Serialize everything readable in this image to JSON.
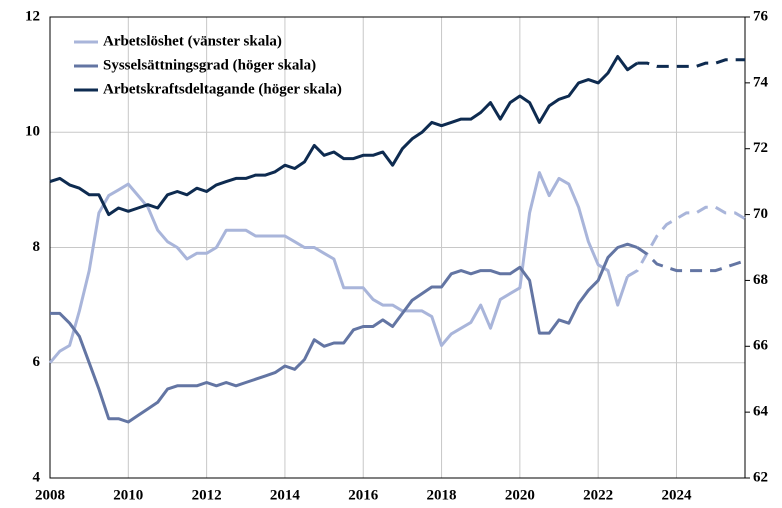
{
  "chart_data": {
    "type": "line",
    "x": [
      2008,
      2008.25,
      2008.5,
      2008.75,
      2009,
      2009.25,
      2009.5,
      2009.75,
      2010,
      2010.25,
      2010.5,
      2010.75,
      2011,
      2011.25,
      2011.5,
      2011.75,
      2012,
      2012.25,
      2012.5,
      2012.75,
      2013,
      2013.25,
      2013.5,
      2013.75,
      2014,
      2014.25,
      2014.5,
      2014.75,
      2015,
      2015.25,
      2015.5,
      2015.75,
      2016,
      2016.25,
      2016.5,
      2016.75,
      2017,
      2017.25,
      2017.5,
      2017.75,
      2018,
      2018.25,
      2018.5,
      2018.75,
      2019,
      2019.25,
      2019.5,
      2019.75,
      2020,
      2020.25,
      2020.5,
      2020.75,
      2021,
      2021.25,
      2021.5,
      2021.75,
      2022,
      2022.25,
      2022.5,
      2022.75,
      2023,
      2023.25,
      2023.5,
      2023.75,
      2024,
      2024.25,
      2024.5,
      2024.75,
      2025,
      2025.25,
      2025.5,
      2025.75
    ],
    "xlim": [
      2008,
      2025.75
    ],
    "xticks": [
      2008,
      2010,
      2012,
      2014,
      2016,
      2018,
      2020,
      2022,
      2024
    ],
    "ylim": [
      4,
      12
    ],
    "yticks": [
      4,
      6,
      8,
      10,
      12
    ],
    "y2lim": [
      62,
      76
    ],
    "y2ticks": [
      62,
      64,
      66,
      68,
      70,
      72,
      74,
      76
    ],
    "grid": true,
    "legend": "upper left",
    "series": [
      {
        "name": "Arbetslöshet (vänster skala)",
        "color": "#a9b5da",
        "dash_from": 2022.75,
        "values": [
          6.0,
          6.2,
          6.3,
          6.9,
          7.6,
          8.6,
          8.9,
          9.0,
          9.1,
          8.9,
          8.7,
          8.3,
          8.1,
          8.0,
          7.8,
          7.9,
          7.9,
          8.0,
          8.3,
          8.3,
          8.3,
          8.2,
          8.2,
          8.2,
          8.2,
          8.1,
          8.0,
          8.0,
          7.9,
          7.8,
          7.3,
          7.3,
          7.3,
          7.1,
          7.0,
          7.0,
          6.9,
          6.9,
          6.9,
          6.8,
          6.3,
          6.5,
          6.6,
          6.7,
          7.0,
          6.6,
          7.1,
          7.2,
          7.3,
          8.6,
          9.3,
          8.9,
          9.2,
          9.1,
          8.7,
          8.1,
          7.7,
          7.6,
          7.0,
          7.5,
          7.6,
          7.9,
          8.2,
          8.4,
          8.5,
          8.6,
          8.6,
          8.7,
          8.7,
          8.6,
          8.6,
          8.5
        ]
      },
      {
        "name": "Sysselsättningsgrad (höger skala)",
        "color": "#6375a3",
        "axis": "y2",
        "dash_from": 2023,
        "values": [
          67.0,
          67.0,
          66.7,
          66.3,
          65.5,
          64.7,
          63.8,
          63.8,
          63.7,
          63.9,
          64.1,
          64.3,
          64.7,
          64.8,
          64.8,
          64.8,
          64.9,
          64.8,
          64.9,
          64.8,
          64.9,
          65.0,
          65.1,
          65.2,
          65.4,
          65.3,
          65.6,
          66.2,
          66.0,
          66.1,
          66.1,
          66.5,
          66.6,
          66.6,
          66.8,
          66.6,
          67.0,
          67.4,
          67.6,
          67.8,
          67.8,
          68.2,
          68.3,
          68.2,
          68.3,
          68.3,
          68.2,
          68.2,
          68.4,
          68.0,
          66.4,
          66.4,
          66.8,
          66.7,
          67.3,
          67.7,
          68.0,
          68.7,
          69.0,
          69.1,
          69.0,
          68.8,
          68.5,
          68.4,
          68.3,
          68.3,
          68.3,
          68.3,
          68.3,
          68.4,
          68.5,
          68.6
        ]
      },
      {
        "name": "Arbetskraftsdeltagande (höger skala)",
        "color": "#0e2b50",
        "axis": "y2",
        "dash_from": 2023,
        "values": [
          71.0,
          71.1,
          70.9,
          70.8,
          70.6,
          70.6,
          70.0,
          70.2,
          70.1,
          70.2,
          70.3,
          70.2,
          70.6,
          70.7,
          70.6,
          70.8,
          70.7,
          70.9,
          71.0,
          71.1,
          71.1,
          71.2,
          71.2,
          71.3,
          71.5,
          71.4,
          71.6,
          72.1,
          71.8,
          71.9,
          71.7,
          71.7,
          71.8,
          71.8,
          71.9,
          71.5,
          72.0,
          72.3,
          72.5,
          72.8,
          72.7,
          72.8,
          72.9,
          72.9,
          73.1,
          73.4,
          72.9,
          73.4,
          73.6,
          73.4,
          72.8,
          73.3,
          73.5,
          73.6,
          74.0,
          74.1,
          74.0,
          74.3,
          74.8,
          74.4,
          74.6,
          74.6,
          74.5,
          74.5,
          74.5,
          74.5,
          74.5,
          74.6,
          74.6,
          74.7,
          74.7,
          74.7
        ]
      }
    ]
  }
}
